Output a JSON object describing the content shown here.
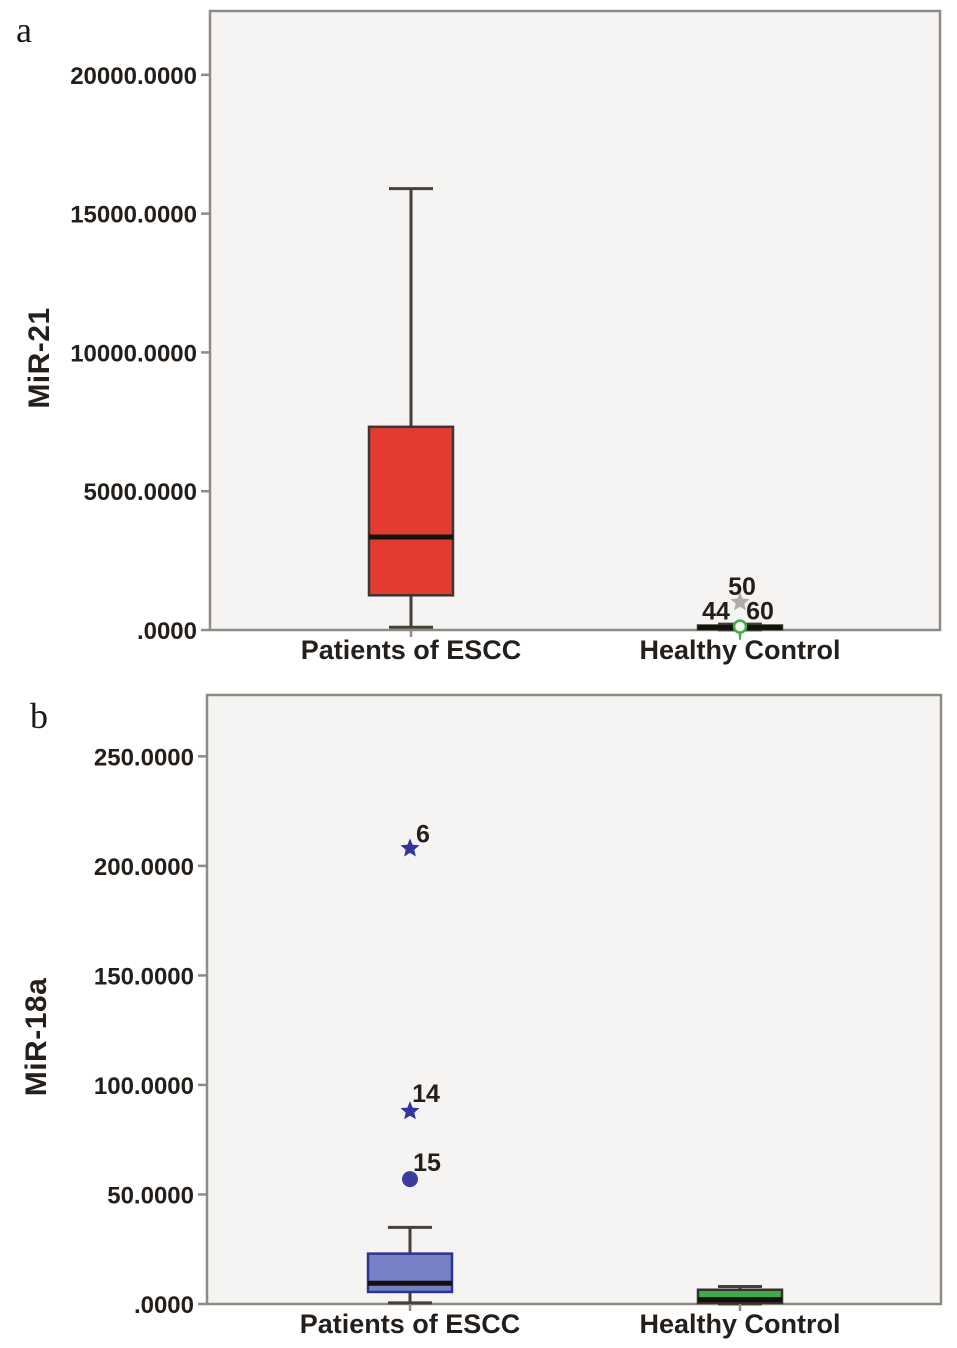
{
  "style": {
    "panel_bg": "#f5f4f2",
    "frame": "#8f8a84",
    "text": "#241f1b",
    "whisker": "#45413a",
    "median": "#15120e"
  },
  "chart_data": [
    {
      "type": "box",
      "panel_letter": "a",
      "ylabel": "MiR-21",
      "ylim": [
        0,
        22300
      ],
      "grid": false,
      "yticks": [
        {
          "value": 0,
          "label": ".0000"
        },
        {
          "value": 5000,
          "label": "5000.0000"
        },
        {
          "value": 10000,
          "label": "10000.0000"
        },
        {
          "value": 15000,
          "label": "15000.0000"
        },
        {
          "value": 20000,
          "label": "20000.0000"
        }
      ],
      "categories": [
        "Patients of ESCC",
        "Healthy Control"
      ],
      "boxes": [
        {
          "category": "Patients of ESCC",
          "fill": "#e23b32",
          "stroke": "#3a3632",
          "whisker_low": 100,
          "q1": 1250,
          "median": 3350,
          "q3": 7320,
          "whisker_high": 15900,
          "outliers": []
        },
        {
          "category": "Healthy Control",
          "fill": "#3fac4b",
          "stroke": "#35322c",
          "whisker_low": 5,
          "q1": 30,
          "median": 90,
          "q3": 160,
          "whisker_high": 210,
          "outliers": [
            {
              "label": "50",
              "value": 1000,
              "marker": "star",
              "color": "#b2aca4",
              "label_dx": 2,
              "label_dy": -7
            },
            {
              "label": "44",
              "value": 120,
              "marker": "none",
              "color": "#3fac4b",
              "label_dx": -24,
              "label_dy": -7
            },
            {
              "label": "60",
              "value": 120,
              "marker": "circle-open",
              "color": "#3fac4b",
              "label_dx": 20,
              "label_dy": -7
            }
          ]
        }
      ]
    },
    {
      "type": "box",
      "panel_letter": "b",
      "ylabel": "MiR-18a",
      "ylim": [
        0,
        278
      ],
      "grid": false,
      "yticks": [
        {
          "value": 0,
          "label": ".0000"
        },
        {
          "value": 50,
          "label": "50.0000"
        },
        {
          "value": 100,
          "label": "100.0000"
        },
        {
          "value": 150,
          "label": "150.0000"
        },
        {
          "value": 200,
          "label": "200.0000"
        },
        {
          "value": 250,
          "label": "250.0000"
        }
      ],
      "categories": [
        "Patients of ESCC",
        "Healthy Control"
      ],
      "boxes": [
        {
          "category": "Patients of ESCC",
          "fill": "#7580c5",
          "stroke": "#2f3390",
          "whisker_low": 0.5,
          "q1": 5.5,
          "median": 9.5,
          "q3": 23,
          "whisker_high": 35,
          "outliers": [
            {
              "label": "6",
              "value": 208,
              "marker": "star",
              "color": "#34349c",
              "label_dx": 13,
              "label_dy": -6
            },
            {
              "label": "14",
              "value": 88,
              "marker": "star",
              "color": "#34349c",
              "label_dx": 16,
              "label_dy": -9
            },
            {
              "label": "15",
              "value": 57,
              "marker": "dot",
              "color": "#3c3c9e",
              "label_dx": 17,
              "label_dy": -8
            }
          ]
        },
        {
          "category": "Healthy Control",
          "fill": "#3fac4b",
          "stroke": "#35322c",
          "whisker_low": 0,
          "q1": 0.5,
          "median": 2,
          "q3": 6.5,
          "whisker_high": 8,
          "outliers": []
        }
      ]
    }
  ]
}
